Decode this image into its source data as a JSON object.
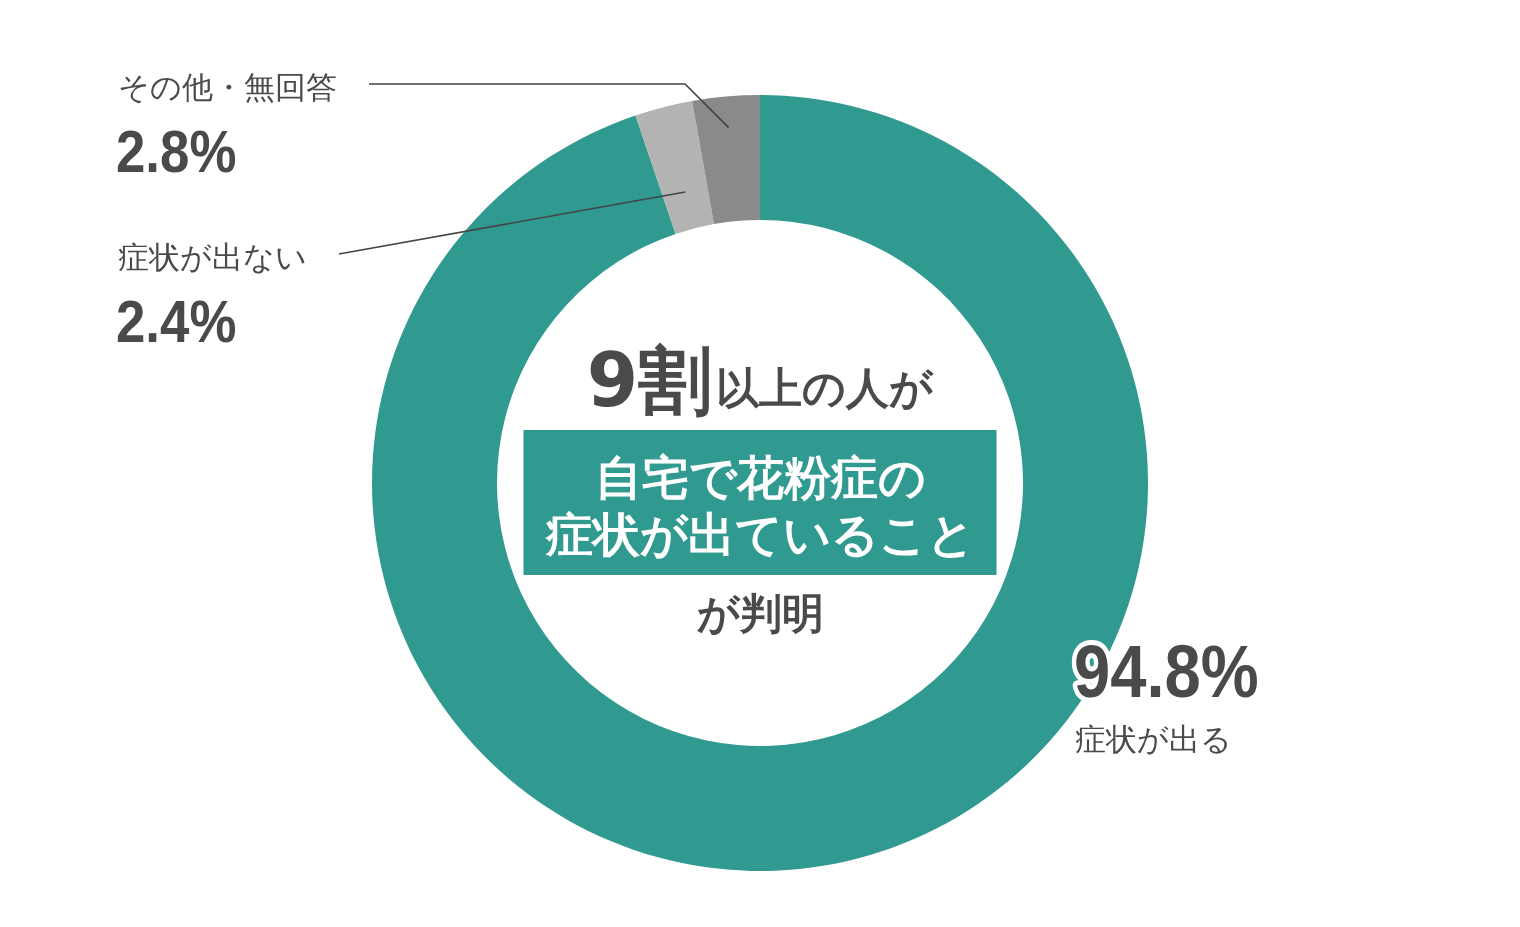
{
  "chart_data": {
    "type": "donut",
    "categories": [
      "症状が出る",
      "症状が出ない",
      "その他・無回答"
    ],
    "values": [
      94.8,
      2.4,
      2.8
    ],
    "colors": [
      "#309a91",
      "#b3b3b3",
      "#8a8a8a"
    ],
    "value_labels": [
      "94.8%",
      "2.4%",
      "2.8%"
    ],
    "annotations": [
      "9割",
      "以上の人が",
      "自宅で花粉症の",
      "症状が出ていること",
      "が判明"
    ]
  }
}
